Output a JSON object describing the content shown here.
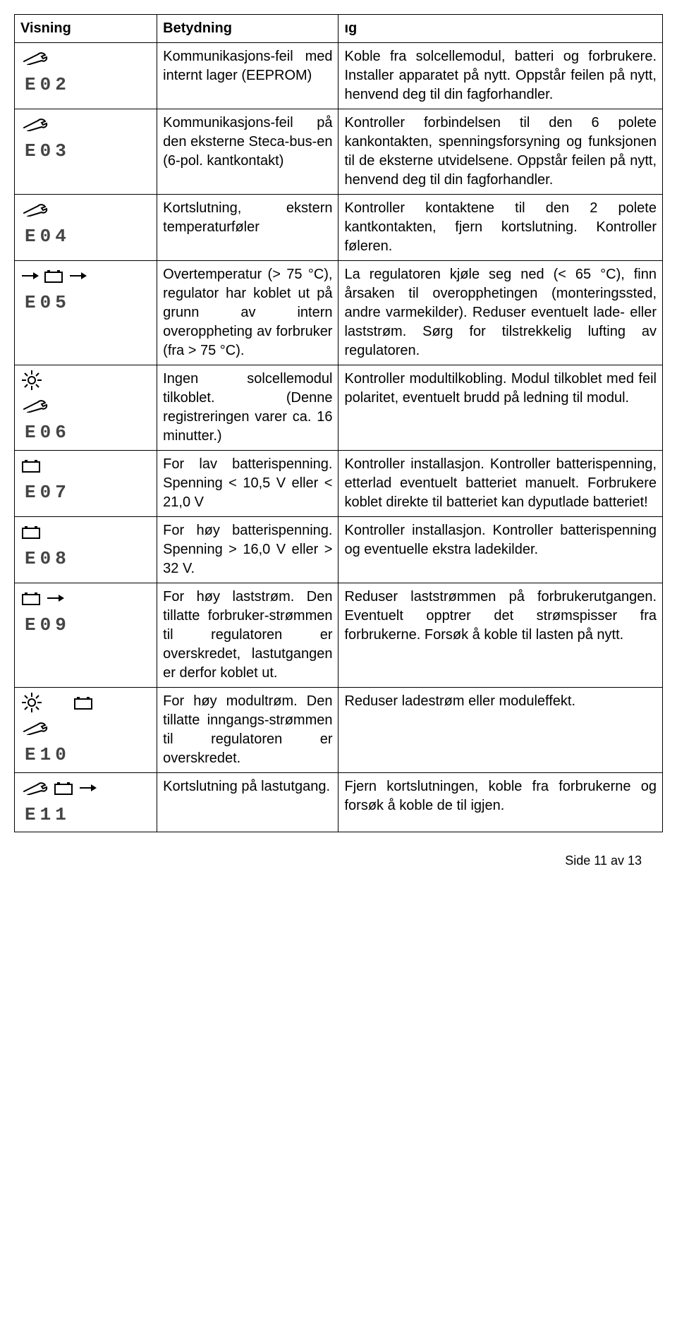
{
  "headers": {
    "col1": "Visning",
    "col2": "Betydning",
    "col3_fragment": "ıg"
  },
  "rows": [
    {
      "code": "E02",
      "icons": [
        "wrench"
      ],
      "meaning": "Kommunikasjons-feil med internt lager (EEPROM)",
      "correction": "Koble fra solcellemodul, batteri og forbrukere. Installer apparatet på nytt. Oppstår feilen på nytt, henvend deg til din fagforhandler."
    },
    {
      "code": "E03",
      "icons": [
        "wrench"
      ],
      "meaning": "Kommunikasjons-feil på den eksterne Steca-bus-en (6-pol. kantkontakt)",
      "correction": "Kontroller forbindelsen til den 6 polete kankontakten, spenningsforsyning og funksjonen til de eksterne utvidelsene. Oppstår feilen på nytt, henvend deg til din fagforhandler."
    },
    {
      "code": "E04",
      "icons": [
        "wrench"
      ],
      "meaning": "Kortslutning, ekstern temperaturføler",
      "correction": "Kontroller kontaktene til den 2 polete kantkontakten, fjern kortslutning. Kontroller føleren."
    },
    {
      "code": "E05",
      "icons": [
        "arrow-right",
        "battery",
        "arrow-right"
      ],
      "meaning": "Overtemperatur (> 75 °C), regulator har koblet ut på grunn av intern overoppheting av forbruker (fra > 75 °C).",
      "correction": "La regulatoren kjøle seg ned (< 65 °C), finn årsaken til overopphetingen (monteringssted, andre varmekilder). Reduser eventuelt lade- eller laststrøm. Sørg for tilstrekkelig lufting av regulatoren."
    },
    {
      "code": "E06",
      "icons": [
        "sun",
        "wrench"
      ],
      "stack": true,
      "meaning": "Ingen solcellemodul tilkoblet. (Denne registreringen varer ca. 16 minutter.)",
      "correction": "Kontroller modultilkobling. Modul tilkoblet med feil polaritet, eventuelt brudd på ledning til modul."
    },
    {
      "code": "E07",
      "icons": [
        "battery"
      ],
      "meaning": "For lav batterispenning. Spenning < 10,5 V eller < 21,0 V",
      "correction": "Kontroller installasjon. Kontroller batterispenning, etterlad eventuelt batteriet manuelt. Forbrukere koblet direkte til batteriet kan dyputlade batteriet!"
    },
    {
      "code": "E08",
      "icons": [
        "battery"
      ],
      "meaning": "For høy batterispenning. Spenning > 16,0 V eller > 32 V.",
      "correction": "Kontroller installasjon. Kontroller batterispenning og eventuelle ekstra ladekilder."
    },
    {
      "code": "E09",
      "icons": [
        "battery",
        "arrow-right"
      ],
      "meaning": "For høy laststrøm. Den tillatte forbruker-strømmen til regulatoren er overskredet, lastutgangen er derfor koblet ut.",
      "correction": "Reduser laststrømmen på forbrukerutgangen. Eventuelt opptrer det strømspisser fra forbrukerne. Forsøk å koble til lasten på nytt."
    },
    {
      "code": "E10",
      "icons": [
        "sun",
        "wrench",
        "battery"
      ],
      "stack": true,
      "meaning": "For høy modultrøm. Den tillatte inngangs-strømmen til regulatoren er overskredet.",
      "correction": "Reduser ladestrøm eller moduleffekt."
    },
    {
      "code": "E11",
      "icons": [
        "wrench",
        "battery",
        "arrow-right"
      ],
      "meaning": "Kortslutning på lastutgang.",
      "correction": "Fjern kortslutningen, koble fra forbrukerne og forsøk å koble de til igjen."
    }
  ],
  "footer": "Side 11 av 13",
  "style": {
    "font_family": "Arial, sans-serif",
    "border_color": "#000000",
    "code_color": "#444444",
    "background": "#ffffff",
    "th_fontsize": 20,
    "td_fontsize": 20,
    "code_fontsize": 26
  }
}
